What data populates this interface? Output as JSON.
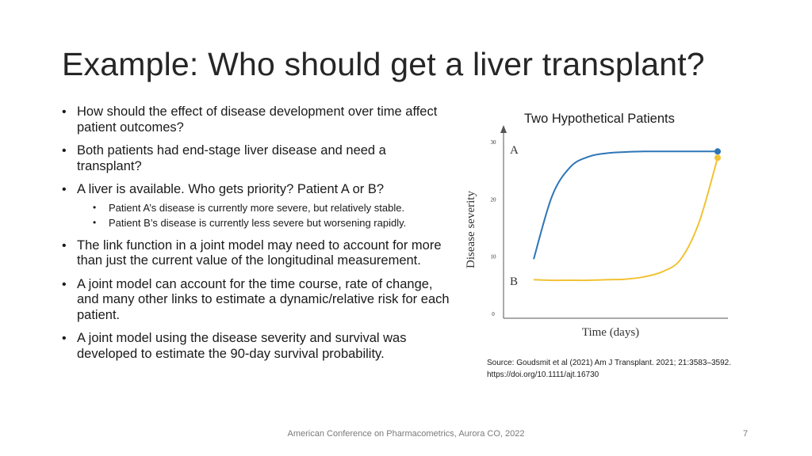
{
  "slide": {
    "title": "Example: Who should get a liver transplant?",
    "bullets": [
      "How should the effect of disease development over time affect patient outcomes?",
      "Both patients had end-stage liver disease and need a transplant?",
      "A liver is available. Who gets priority? Patient A or B?",
      "The link function in a joint model may need to  account for more than just the current value of the longitudinal measurement.",
      "A joint model can account for the time course, rate of change, and many other links to estimate a dynamic/relative risk for each patient.",
      "A joint model using the disease severity and survival was developed to estimate the 90-day survival probability."
    ],
    "subbullets": [
      "Patient A’s disease is currently more severe, but relatively stable.",
      "Patient B’s disease is currently less severe but worsening rapidly."
    ],
    "source_line1": "Source: Goudsmit et al (2021) Am J Transplant. 2021; 21:3583–3592.",
    "source_line2": "https://doi.org/10.1111/ajt.16730",
    "footer": "American Conference on Pharmacometrics, Aurora CO, 2022",
    "page_number": "7"
  },
  "chart_data": {
    "type": "line",
    "title": "Two Hypothetical Patients",
    "xlabel": "Time (days)",
    "ylabel": "Disease severity",
    "ylim": [
      0,
      30
    ],
    "yticks": [
      "0",
      "10",
      "20",
      "30"
    ],
    "x": [
      0,
      10,
      20,
      30,
      40,
      50,
      60,
      70,
      80,
      90,
      100
    ],
    "series": [
      {
        "name": "A",
        "color": "#2e75b6",
        "values": [
          9.5,
          20.5,
          25.6,
          27.4,
          28.0,
          28.2,
          28.3,
          28.3,
          28.3,
          28.3,
          28.3
        ]
      },
      {
        "name": "B",
        "color": "#f2c233",
        "values": [
          5.9,
          5.8,
          5.8,
          5.8,
          5.9,
          6.0,
          6.4,
          7.3,
          9.5,
          16.0,
          27.2
        ]
      }
    ],
    "grid": false,
    "legend": "none"
  }
}
